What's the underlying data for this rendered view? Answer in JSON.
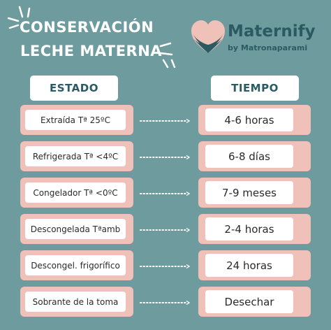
{
  "title": {
    "line1": "CONSERVACIÓN",
    "line2": "LECHE MATERNA"
  },
  "brand": {
    "name": "Maternify",
    "tagline": "by Matronaparami",
    "primary_color": "#2c5a63",
    "heart_color": "#f0c1b8"
  },
  "colors": {
    "background": "#6e9c9e",
    "row_bg": "#f0c1b8",
    "pill_bg": "#ffffff"
  },
  "headers": {
    "estado": "ESTADO",
    "tiempo": "TIEMPO"
  },
  "rows": [
    {
      "estado": "Extraída Tª 25ºC",
      "tiempo": "4-6 horas"
    },
    {
      "estado": "Refrigerada Tª <4ºC",
      "tiempo": "6-8 días"
    },
    {
      "estado": "Congelador Tª <0ºC",
      "tiempo": "7-9 meses"
    },
    {
      "estado": "Descongelada Tªamb",
      "tiempo": "2-4 horas"
    },
    {
      "estado": "Descongel. frigorífico",
      "tiempo": "24 horas"
    },
    {
      "estado": "Sobrante de la toma",
      "tiempo": "Desechar"
    }
  ]
}
